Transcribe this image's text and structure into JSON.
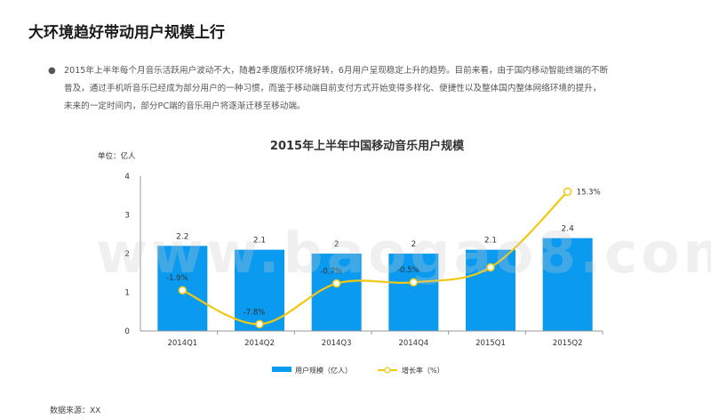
{
  "slide": {
    "title": "大环境趋好带动用户规模上行",
    "paragraph_lines": [
      "2015年上半年每个月音乐活跃用户波动不大，随着2季度版权环境好转，6月用户呈现稳定上升的趋势。目前来看，由于国内移动智能终端的不断",
      "普及，通过手机听音乐已经成为部分用户的一种习惯，而鉴于移动端目前支付方式开始变得多样化、便捷性以及整体国内整体网络环境的提升，",
      "未来的一定时间内，部分PC端的音乐用户将逐渐迁移至移动端。"
    ],
    "bullet_symbol": "●",
    "watermark": "www.baogao8.com",
    "source": "数据来源：XX"
  },
  "colors": {
    "bar": "#0A9BF0",
    "line": "#F2C811",
    "axis": "#999999",
    "grid": "#d9d9d9"
  },
  "chart_data": {
    "type": "bar",
    "title": "2015年上半年中国移动音乐用户规模",
    "unit_label": "单位：亿人",
    "categories": [
      "2014Q1",
      "2014Q2",
      "2014Q3",
      "2014Q4",
      "2015Q1",
      "2015Q2"
    ],
    "ylim": [
      0,
      4
    ],
    "yticks": [
      0,
      1,
      2,
      3,
      4
    ],
    "series": [
      {
        "name": "用户规模（亿人）",
        "kind": "bar",
        "values": [
          2.2,
          2.1,
          2,
          2,
          2.1,
          2.4
        ],
        "labels": [
          "2.2",
          "2.1",
          "2",
          "2",
          "2.1",
          "2.4"
        ]
      },
      {
        "name": "增长率（%）",
        "kind": "line",
        "values": [
          -1.9,
          -7.8,
          -0.7,
          -0.5,
          2.1,
          15.3
        ],
        "labels": [
          "-1.9%",
          "-7.8%",
          "-0.7%",
          "-0.5%",
          "",
          "15.3%"
        ],
        "ylim": [
          -9,
          18
        ]
      }
    ],
    "legend_position": "bottom"
  }
}
